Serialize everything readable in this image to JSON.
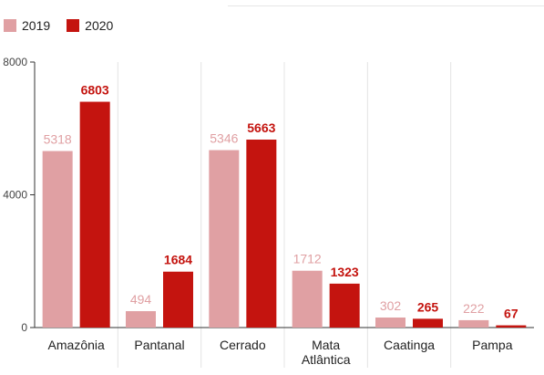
{
  "colors": {
    "y2019": "#e0a0a3",
    "y2020": "#c4140f",
    "axis": "#333333",
    "grid": "#e4e4e4",
    "text": "#222222"
  },
  "chart_data": {
    "type": "bar",
    "categories": [
      "Amazônia",
      "Pantanal",
      "Cerrado",
      "Mata Atlântica",
      "Caatinga",
      "Pampa"
    ],
    "category_lines": [
      [
        "Amazônia"
      ],
      [
        "Pantanal"
      ],
      [
        "Cerrado"
      ],
      [
        "Mata",
        "Atlântica"
      ],
      [
        "Caatinga"
      ],
      [
        "Pampa"
      ]
    ],
    "series": [
      {
        "name": "2019",
        "values": [
          5318,
          494,
          5346,
          1712,
          302,
          222
        ]
      },
      {
        "name": "2020",
        "values": [
          6803,
          1684,
          5663,
          1323,
          265,
          67
        ]
      }
    ],
    "ylim": [
      0,
      8000
    ],
    "yticks": [
      0,
      4000,
      8000
    ],
    "legend_position": "top-left",
    "grid": "vertical category separators"
  }
}
